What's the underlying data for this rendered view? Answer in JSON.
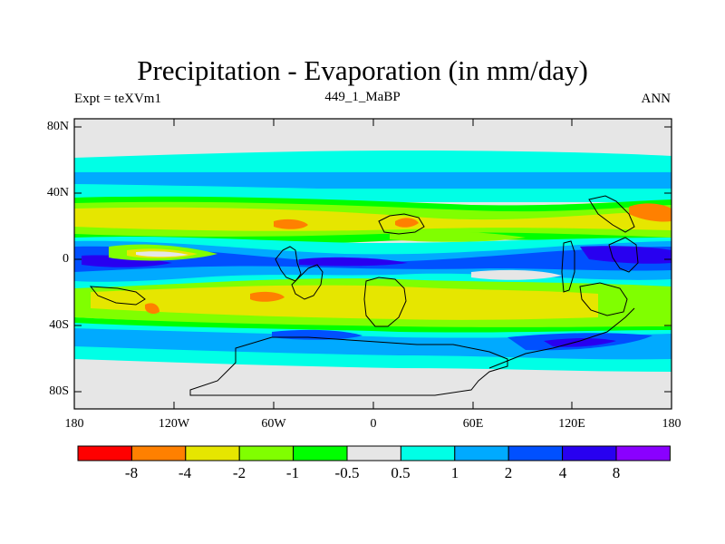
{
  "header": {
    "title": "Precipitation - Evaporation (in mm/day)",
    "left": "Expt = teXVm1",
    "center": "449_1_MaBP",
    "right": "ANN"
  },
  "axes": {
    "lat_labels": [
      "80N",
      "40N",
      "0",
      "40S",
      "80S"
    ],
    "lon_labels": [
      "180",
      "120W",
      "60W",
      "0",
      "60E",
      "120E",
      "180"
    ]
  },
  "colorbar": {
    "colors": [
      "#ff0000",
      "#ff8000",
      "#e6e600",
      "#80ff00",
      "#00ff00",
      "#e6e6e6",
      "#00ffe6",
      "#00aaff",
      "#0050ff",
      "#2800f0",
      "#8a00ff"
    ],
    "labels": [
      "-8",
      "-4",
      "-2",
      "-1",
      "-0.5",
      "0.5",
      "1",
      "2",
      "4",
      "8"
    ]
  },
  "colors": {
    "background": "#ffffff",
    "neutral": "#e6e6e6",
    "coast": "#000000"
  }
}
